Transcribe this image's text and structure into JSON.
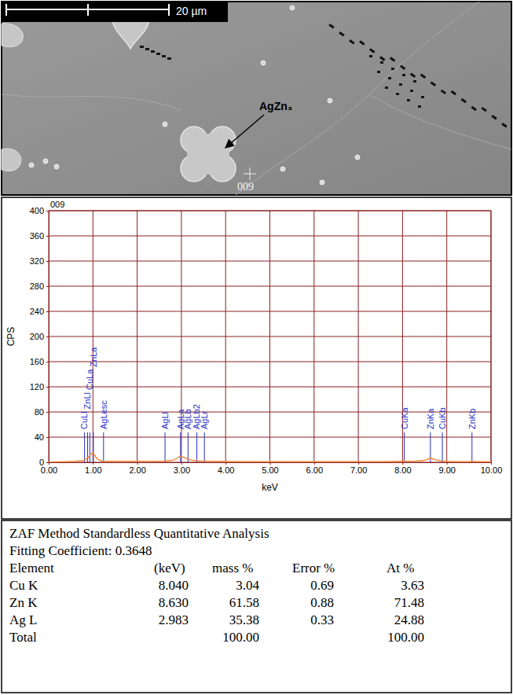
{
  "image": {
    "scale_bar": "20 µm",
    "phase_label": "AgZn₃",
    "point_label": "009"
  },
  "chart_data": {
    "type": "line",
    "title": "009",
    "x_label": "keV",
    "y_label": "CPS",
    "color": "#f08a3c",
    "grid": true,
    "x": [
      0,
      0.2,
      0.4,
      0.6,
      0.8,
      0.9,
      0.95,
      1.0,
      1.05,
      1.1,
      1.2,
      1.4,
      1.6,
      1.8,
      2.0,
      2.2,
      2.4,
      2.6,
      2.8,
      2.9,
      2.98,
      3.05,
      3.15,
      3.25,
      3.4,
      3.6,
      3.8,
      4.0,
      4.5,
      5,
      5.5,
      6,
      6.5,
      7,
      7.5,
      8.0,
      8.04,
      8.1,
      8.3,
      8.5,
      8.6,
      8.63,
      8.7,
      8.8,
      8.9,
      9.0,
      9.2,
      9.5,
      9.57,
      9.7,
      10
    ],
    "values": [
      0,
      0.5,
      1,
      1.5,
      3,
      8,
      13,
      15,
      10,
      5,
      2,
      1.5,
      1.5,
      1.5,
      1.5,
      1.5,
      1.5,
      2,
      3,
      6,
      10,
      8,
      5,
      3,
      2,
      1.5,
      1.5,
      1.2,
      1,
      1,
      1,
      1,
      1,
      1,
      1,
      1.5,
      2,
      1.5,
      2,
      3,
      6,
      7,
      5,
      3,
      2,
      1.5,
      1,
      1,
      1.5,
      1,
      0.8
    ],
    "xlim": [
      0,
      10
    ],
    "xticks": [
      {
        "value": 0,
        "label": "0.00"
      },
      {
        "value": 1,
        "label": "1.00"
      },
      {
        "value": 2,
        "label": "2.00"
      },
      {
        "value": 3,
        "label": "3.00"
      },
      {
        "value": 4,
        "label": "4.00"
      },
      {
        "value": 5,
        "label": "5.00"
      },
      {
        "value": 6,
        "label": "6.00"
      },
      {
        "value": 7,
        "label": "7.00"
      },
      {
        "value": 8,
        "label": "8.00"
      },
      {
        "value": 9,
        "label": "9.00"
      },
      {
        "value": 10,
        "label": "10.00"
      }
    ],
    "ylim": [
      0,
      400
    ],
    "yticks": [
      0,
      40,
      80,
      120,
      160,
      200,
      240,
      280,
      320,
      360,
      400
    ],
    "markers": [
      {
        "label": "CuLl",
        "x": 0.81
      },
      {
        "label": "ZnLl",
        "x": 0.88
      },
      {
        "label": "CuLa",
        "x": 0.93
      },
      {
        "label": "ZnLa",
        "x": 1.01
      },
      {
        "label": "AgLesc",
        "x": 1.24
      },
      {
        "label": "AgLl",
        "x": 2.63
      },
      {
        "label": "AgLa",
        "x": 2.98
      },
      {
        "label": "AgLb",
        "x": 3.15
      },
      {
        "label": "AgLb2",
        "x": 3.35
      },
      {
        "label": "AgLr",
        "x": 3.52
      },
      {
        "label": "CuKa",
        "x": 8.04
      },
      {
        "label": "ZnKa",
        "x": 8.63
      },
      {
        "label": "CuKb",
        "x": 8.9
      },
      {
        "label": "ZnKb",
        "x": 9.57
      }
    ]
  },
  "table": {
    "title": "ZAF Method Standardless Quantitative Analysis",
    "fitting": "Fitting Coefficient: 0.3648",
    "header": [
      "Element",
      "(keV)",
      "mass %",
      "Error %",
      "At %"
    ],
    "rows": [
      [
        "Cu K",
        "8.040",
        "3.04",
        "0.69",
        "3.63"
      ],
      [
        "Zn K",
        "8.630",
        "61.58",
        "0.88",
        "71.48"
      ],
      [
        "Ag L",
        "2.983",
        "35.38",
        "0.33",
        "24.88"
      ],
      [
        "Total",
        null,
        "100.00",
        null,
        "100.00"
      ]
    ]
  }
}
